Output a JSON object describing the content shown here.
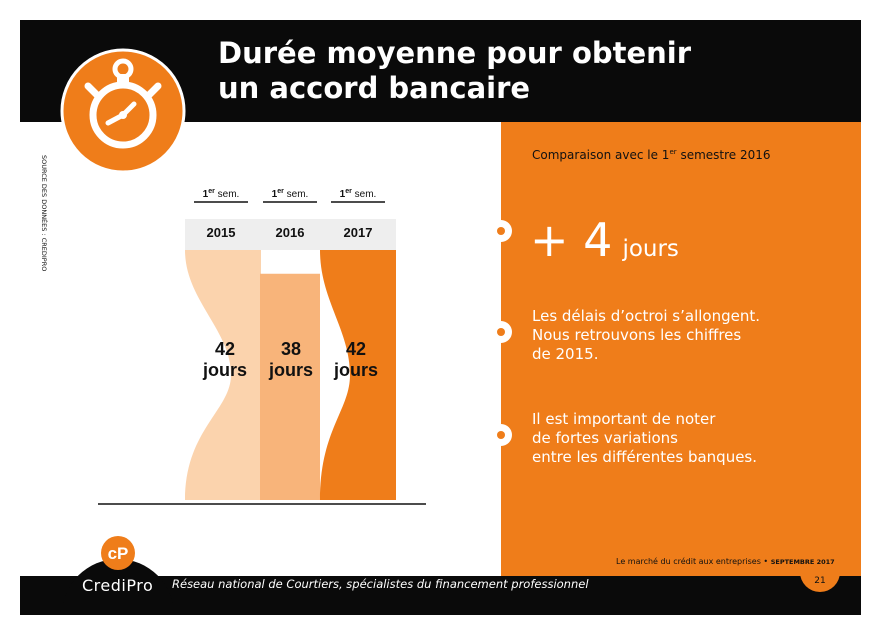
{
  "header": {
    "title_line1": "Durée moyenne pour obtenir",
    "title_line2": "un accord bancaire"
  },
  "source": "SOURCE DES DONNÉES : CREDIPRO",
  "comparison": {
    "prefix": "Comparaison avec le 1",
    "sup": "er",
    "suffix": " semestre 2016"
  },
  "highlight": {
    "value": "+ 4",
    "unit": "jours"
  },
  "paragraphs": [
    "Les délais d’octroi s’allongent.\nNous retrouvons les chiffres\nde 2015.",
    "Il est important de noter\nde fortes variations\nentre les différentes banques."
  ],
  "footer": {
    "brand": "CrediPro",
    "tagline": "Réseau national de Courtiers, spécialistes du financement professionnel",
    "meta": "Le marché du crédit aux entreprises • ",
    "meta_bold": "SEPTEMBRE 2017",
    "page": "21"
  },
  "colors": {
    "orange": "#ef7d1a",
    "light": "#fbd3ad",
    "mid": "#f8b47a",
    "black": "#0a0a0a",
    "band": "#eeeeee"
  },
  "chart_data": {
    "type": "bar",
    "period_label": {
      "num": "1",
      "sup": "er",
      "text": " sem."
    },
    "categories": [
      "2015",
      "2016",
      "2017"
    ],
    "values": [
      42,
      38,
      42
    ],
    "value_labels": [
      "42",
      "38",
      "42"
    ],
    "unit": "jours",
    "bar_colors": [
      "#fbd3ad",
      "#f8b47a",
      "#ef7d1a"
    ]
  }
}
